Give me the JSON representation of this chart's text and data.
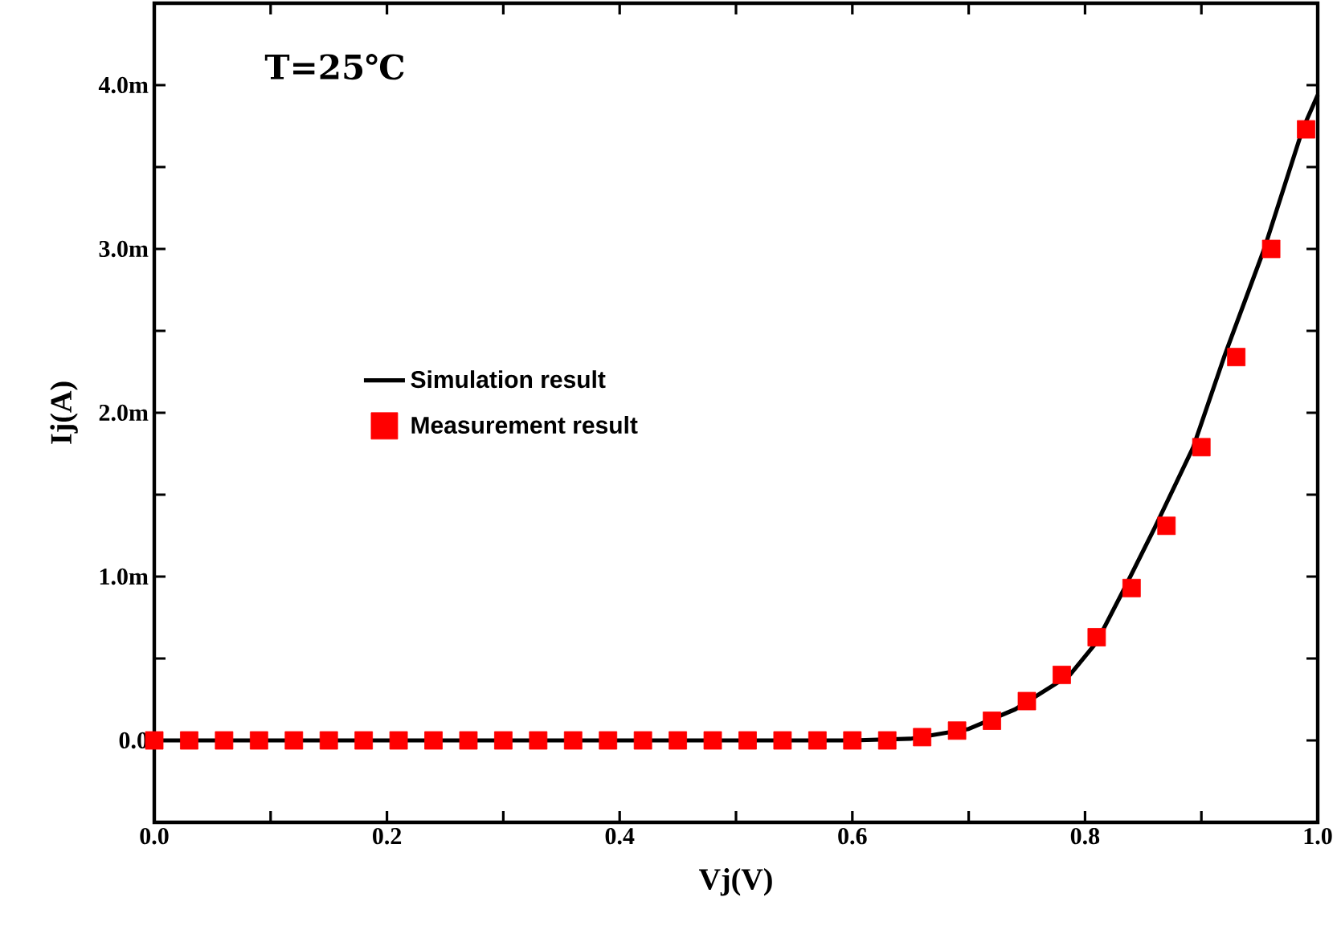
{
  "chart_data": {
    "type": "scatter",
    "xlabel": "Vj(V)",
    "ylabel": "Ij(A)",
    "annotations": [
      "T=25℃"
    ],
    "xlim": [
      0,
      1
    ],
    "ylim": [
      -0.5,
      4.5
    ],
    "xticks": [
      {
        "value": 0,
        "label": "0.0"
      },
      {
        "value": 0.1,
        "label": null
      },
      {
        "value": 0.2,
        "label": "0.2"
      },
      {
        "value": 0.3,
        "label": null
      },
      {
        "value": 0.4,
        "label": "0.4"
      },
      {
        "value": 0.5,
        "label": null
      },
      {
        "value": 0.6,
        "label": "0.6"
      },
      {
        "value": 0.7,
        "label": null
      },
      {
        "value": 0.8,
        "label": "0.8"
      },
      {
        "value": 0.9,
        "label": null
      },
      {
        "value": 1.0,
        "label": "1.0"
      }
    ],
    "yticks": [
      {
        "value": -0.5,
        "label": null
      },
      {
        "value": 0,
        "label": "0.0"
      },
      {
        "value": 0.5,
        "label": null
      },
      {
        "value": 1,
        "label": "1.0m"
      },
      {
        "value": 1.5,
        "label": null
      },
      {
        "value": 2,
        "label": "2.0m"
      },
      {
        "value": 2.5,
        "label": null
      },
      {
        "value": 3,
        "label": "3.0m"
      },
      {
        "value": 3.5,
        "label": null
      },
      {
        "value": 4,
        "label": "4.0m"
      }
    ],
    "grid": false,
    "legend": "left",
    "series": [
      {
        "name": "Simulation result",
        "type": "line",
        "color": "#000000",
        "marker": "none",
        "line_style": "solid",
        "x": [
          0,
          0.3,
          0.6,
          0.65,
          0.7,
          0.74,
          0.787,
          0.81,
          0.834,
          0.86,
          0.893,
          0.92,
          0.954,
          0.987,
          1.0
        ],
        "values": [
          0,
          0,
          0,
          0.01,
          0.07,
          0.19,
          0.4,
          0.6,
          0.93,
          1.3,
          1.79,
          2.35,
          3.0,
          3.73,
          3.94
        ]
      },
      {
        "name": "Measurement result",
        "color": "#ff0000",
        "marker": "square",
        "x": [
          0,
          0.03,
          0.06,
          0.09,
          0.12,
          0.15,
          0.18,
          0.21,
          0.24,
          0.27,
          0.3,
          0.33,
          0.36,
          0.39,
          0.42,
          0.45,
          0.48,
          0.51,
          0.54,
          0.57,
          0.6,
          0.63,
          0.66,
          0.69,
          0.72,
          0.75,
          0.78,
          0.81,
          0.84,
          0.87,
          0.9,
          0.93,
          0.96,
          0.99
        ],
        "values": [
          0,
          0,
          0,
          0,
          0,
          0,
          0,
          0,
          0,
          0,
          0,
          0,
          0,
          0,
          0,
          0,
          0,
          0,
          0,
          0,
          0,
          0,
          0.02,
          0.06,
          0.12,
          0.24,
          0.4,
          0.63,
          0.93,
          1.31,
          1.79,
          2.34,
          3.0,
          3.73
        ]
      }
    ]
  }
}
